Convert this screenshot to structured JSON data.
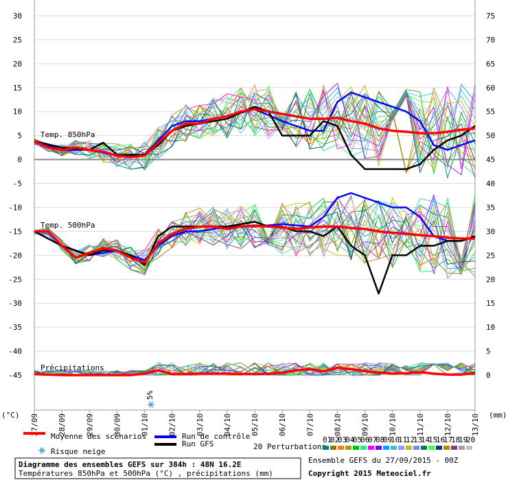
{
  "chart_data": {
    "type": "line",
    "title": "Diagramme des ensembles GEFS sur 384h : 48N 16.2E",
    "subtitle": "Températures 850hPa et 500hPa (°C) , précipitations (mm)",
    "ensemble_label": "Ensemble GEFS du 27/09/2015 - 00Z",
    "copyright": "Copyright 2015 Meteociel.fr",
    "ylabel_left": "(°C)",
    "ylabel_right": "(mm)",
    "ylim_left": [
      -45,
      30
    ],
    "left_ticks": [
      30,
      25,
      20,
      15,
      10,
      5,
      0,
      -5,
      -10,
      -15,
      -20,
      -25,
      -30,
      -35,
      -40,
      -45
    ],
    "right_ticks": [
      75,
      70,
      65,
      60,
      55,
      50,
      45,
      40,
      35,
      30,
      25,
      20,
      15,
      10,
      5,
      0
    ],
    "x_labels": [
      "27/09",
      "28/09",
      "29/09",
      "30/09",
      "01/10",
      "02/10",
      "03/10",
      "04/10",
      "05/10",
      "06/10",
      "07/10",
      "08/10",
      "09/10",
      "10/10",
      "11/10",
      "12/10",
      "13/10"
    ],
    "annotations": {
      "t850": "Temp. 850hPa",
      "t500": "Temp. 500hPa",
      "precip": "Précipitations"
    },
    "snow_risk": {
      "day": "01/10",
      "label": "5%"
    },
    "legend": {
      "mean": "Moyenne des scénarios",
      "control": "Run de contrôle",
      "gfs": "Run GFS",
      "perturbations": "20 Perturbations",
      "snow": "Risque neige",
      "perturbation_ids": [
        "01",
        "02",
        "03",
        "04",
        "05",
        "06",
        "07",
        "08",
        "09",
        "10",
        "11",
        "12",
        "13",
        "14",
        "15",
        "16",
        "17",
        "18",
        "19",
        "20"
      ]
    },
    "colors": {
      "mean": "#ff0000",
      "control": "#0000ff",
      "gfs": "#000000",
      "perturbations": [
        "#008080",
        "#808000",
        "#ff8000",
        "#a0a000",
        "#00c000",
        "#00ff80",
        "#ff00ff",
        "#8000ff",
        "#00a0ff",
        "#40c0c0",
        "#80a0ff",
        "#c0c000",
        "#8080ff",
        "#008040",
        "#40ff40",
        "#004080",
        "#c08000",
        "#804080",
        "#a0a0a0",
        "#c0c0c0"
      ]
    },
    "series": [
      {
        "name": "Moyenne des scénarios 850hPa",
        "x": [
          0,
          0.5,
          1,
          1.5,
          2,
          2.5,
          3,
          3.5,
          4,
          4.5,
          5,
          5.5,
          6,
          6.5,
          7,
          7.5,
          8,
          8.5,
          9,
          9.5,
          10,
          10.5,
          11,
          11.5,
          12,
          12.5,
          13,
          13.5,
          14,
          14.5,
          15,
          15.5,
          16
        ],
        "values": [
          3.8,
          2.5,
          2,
          2.5,
          2,
          1.6,
          0.8,
          0.5,
          0.8,
          3.5,
          6,
          7.5,
          7.5,
          8.5,
          9,
          10,
          10.5,
          10,
          9.5,
          9,
          8.5,
          8.5,
          8.7,
          8,
          7.5,
          6.5,
          6,
          5.8,
          5.5,
          5.5,
          5.8,
          6.2,
          6.5
        ]
      },
      {
        "name": "Moyenne des scénarios 500hPa",
        "x": [
          0,
          0.5,
          1,
          1.5,
          2,
          2.5,
          3,
          3.5,
          4,
          4.5,
          5,
          5.5,
          6,
          6.5,
          7,
          7.5,
          8,
          8.5,
          9,
          9.5,
          10,
          10.5,
          11,
          11.5,
          12,
          12.5,
          13,
          13.5,
          14,
          14.5,
          15,
          15.5,
          16
        ],
        "values": [
          -15,
          -15,
          -18,
          -20.5,
          -19.5,
          -18.5,
          -19,
          -20.5,
          -21.5,
          -17.5,
          -15.5,
          -14.5,
          -14,
          -14,
          -14.5,
          -14,
          -13.8,
          -14,
          -14.2,
          -14.5,
          -14.2,
          -14,
          -14,
          -14.3,
          -14.5,
          -15,
          -15.3,
          -15.5,
          -15.8,
          -16,
          -16.3,
          -16.5,
          -16.5
        ]
      },
      {
        "name": "Run de contrôle 850hPa",
        "x": [
          0,
          1,
          2,
          3,
          3.5,
          4,
          4.5,
          5,
          5.5,
          6,
          7,
          8,
          9,
          10,
          10.5,
          11,
          11.5,
          12,
          12.5,
          13,
          13.5,
          14,
          14.5,
          15,
          15.5,
          16
        ],
        "values": [
          3.8,
          2,
          2,
          0.8,
          0.8,
          1,
          4,
          7,
          8,
          8,
          9,
          10.5,
          8,
          6,
          6,
          12,
          14,
          13,
          12,
          11,
          10,
          8,
          3,
          2,
          3,
          4
        ]
      },
      {
        "name": "Run de contrôle 500hPa",
        "x": [
          0,
          1,
          2,
          3,
          3.5,
          4,
          4.5,
          5,
          5.5,
          6,
          7,
          8,
          9,
          10,
          10.5,
          11,
          11.5,
          12,
          12.5,
          13,
          13.5,
          14,
          14.5,
          15,
          15.5,
          16
        ],
        "values": [
          -15,
          -18,
          -20,
          -19,
          -20,
          -21,
          -18,
          -16,
          -15,
          -15,
          -14,
          -14,
          -13.5,
          -14,
          -12,
          -8,
          -7,
          -8,
          -9,
          -10,
          -10,
          -12,
          -16,
          -17,
          -17,
          -16
        ]
      },
      {
        "name": "Run GFS 850hPa",
        "x": [
          0,
          1,
          2,
          2.5,
          3,
          3.5,
          4,
          4.5,
          5,
          5.5,
          6,
          7,
          8,
          8.5,
          9,
          9.5,
          10,
          10.5,
          11,
          11.5,
          12,
          12.5,
          13,
          13.5,
          14,
          14.5,
          15,
          15.5,
          16
        ],
        "values": [
          3.8,
          2.5,
          2,
          3.5,
          1,
          1,
          1,
          3,
          6,
          7,
          7.5,
          8.5,
          11,
          10,
          5,
          5,
          5,
          8,
          7,
          1,
          -2,
          -2,
          -2,
          -2,
          -1,
          2,
          4,
          5,
          7
        ]
      },
      {
        "name": "Run GFS 500hPa",
        "x": [
          0,
          1,
          2,
          2.5,
          3,
          3.5,
          4,
          4.5,
          5,
          5.5,
          6,
          7,
          8,
          8.5,
          9,
          9.5,
          10,
          10.5,
          11,
          11.5,
          12,
          12.5,
          13,
          13.5,
          14,
          14.5,
          15,
          15.5,
          16
        ],
        "values": [
          -15,
          -18,
          -20,
          -19,
          -19,
          -20,
          -22,
          -16,
          -14,
          -14,
          -14,
          -14,
          -13,
          -14,
          -14,
          -15,
          -15,
          -16,
          -14,
          -18,
          -20,
          -28,
          -20,
          -20,
          -18,
          -18,
          -17,
          -17,
          -16
        ]
      },
      {
        "name": "Moyenne des scénarios précipitations",
        "x": [
          0,
          1,
          2,
          3,
          3.5,
          4,
          4.5,
          5,
          6,
          7,
          8,
          8.5,
          9,
          9.5,
          10,
          10.5,
          11,
          11.5,
          12,
          12.5,
          13,
          13.5,
          14,
          14.5,
          15,
          15.5,
          16
        ],
        "values": [
          0.2,
          0,
          0,
          0,
          0,
          0.3,
          1,
          0.2,
          0.3,
          0.3,
          0.2,
          0.3,
          0.5,
          1,
          1.2,
          0.8,
          1.5,
          1.2,
          0.8,
          0.5,
          0.3,
          0.4,
          0.6,
          0.3,
          0.1,
          0.1,
          0.5
        ]
      }
    ]
  }
}
